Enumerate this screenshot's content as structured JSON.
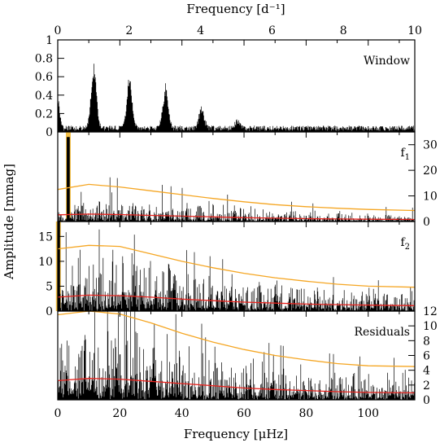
{
  "chart_data": {
    "type": "line",
    "xlabel_bottom": "Frequency [μHz]",
    "xlabel_top": "Frequency [d⁻¹]",
    "ylabel": "Amplitude [mmag]",
    "x_range_uhz": [
      0,
      115
    ],
    "x_range_per_day": [
      0,
      10
    ],
    "top_ticks": [
      "0",
      "2",
      "4",
      "6",
      "8",
      "10"
    ],
    "bottom_ticks": [
      "0",
      "20",
      "40",
      "60",
      "80",
      "100"
    ],
    "colors": {
      "spectrum": "#000000",
      "noise": "#e8231e",
      "threshold": "#f5a623",
      "highlight": "#f0b428"
    },
    "panels": [
      {
        "label": "Window",
        "ylim": [
          0,
          1
        ],
        "yticks_left": [
          "0",
          "0.2",
          "0.4",
          "0.6",
          "0.8",
          "1"
        ],
        "yticks_right": [],
        "peaks": [
          {
            "x": 0.0,
            "y": 0.33
          },
          {
            "x": 11.6,
            "y": 0.69
          },
          {
            "x": 23.1,
            "y": 0.57
          },
          {
            "x": 34.7,
            "y": 0.47
          },
          {
            "x": 46.3,
            "y": 0.22
          },
          {
            "x": 57.9,
            "y": 0.08
          }
        ],
        "base_level": 0.04
      },
      {
        "label": "f",
        "label_subscript": "1",
        "ylim": [
          0,
          35
        ],
        "yticks_left": [],
        "yticks_right": [
          "0",
          "10",
          "20",
          "30"
        ],
        "highlight_x": 3.4,
        "highlight_peak": 33,
        "noise_x": [
          0,
          10,
          20,
          30,
          40,
          50,
          60,
          70,
          80,
          90,
          100,
          115
        ],
        "noise": [
          2.6,
          2.9,
          2.7,
          2.4,
          2.1,
          1.8,
          1.5,
          1.3,
          1.1,
          1.0,
          0.9,
          0.8
        ],
        "threshold": [
          12.5,
          14.5,
          13.5,
          12.0,
          10.5,
          9.0,
          7.7,
          6.6,
          5.8,
          5.2,
          4.7,
          4.3
        ]
      },
      {
        "label": "f",
        "label_subscript": "2",
        "ylim": [
          0,
          18
        ],
        "yticks_left": [
          "0",
          "5",
          "10",
          "15"
        ],
        "yticks_right": [],
        "highlight_x": 0.2,
        "highlight_peak": 18,
        "noise_x": [
          0,
          10,
          20,
          30,
          40,
          50,
          60,
          70,
          80,
          90,
          100,
          115
        ],
        "noise": [
          2.8,
          3.2,
          3.1,
          2.8,
          2.4,
          2.1,
          1.8,
          1.6,
          1.4,
          1.3,
          1.2,
          1.1
        ],
        "threshold": [
          12.5,
          13.2,
          13.0,
          11.5,
          10.0,
          8.7,
          7.6,
          6.7,
          6.0,
          5.4,
          5.0,
          4.8
        ]
      },
      {
        "label": "Residuals",
        "ylim": [
          0,
          12
        ],
        "yticks_left": [],
        "yticks_right": [
          "0",
          "2",
          "4",
          "6",
          "8",
          "10",
          "12"
        ],
        "noise_x": [
          0,
          10,
          20,
          30,
          40,
          50,
          60,
          70,
          80,
          90,
          100,
          115
        ],
        "noise": [
          2.6,
          2.9,
          2.8,
          2.5,
          2.2,
          1.9,
          1.6,
          1.4,
          1.25,
          1.1,
          1.0,
          0.95
        ],
        "threshold": [
          11.5,
          12.0,
          11.6,
          10.4,
          9.0,
          7.8,
          6.8,
          6.0,
          5.4,
          4.9,
          4.6,
          4.5
        ]
      }
    ]
  }
}
